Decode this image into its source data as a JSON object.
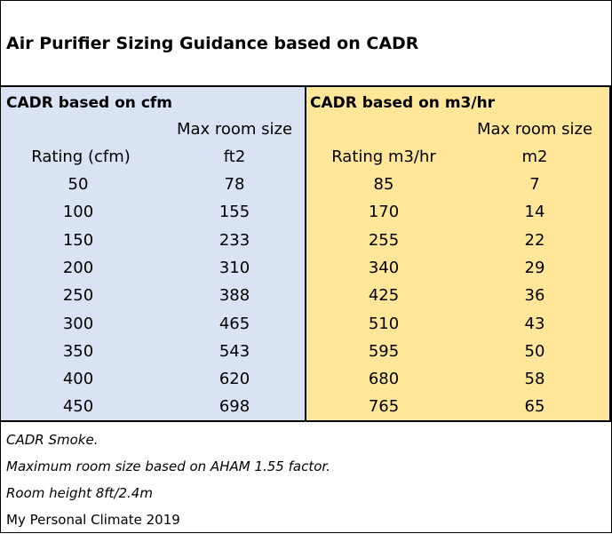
{
  "title": "Air Purifier Sizing Guidance based on  CADR",
  "cfm": {
    "heading": "CADR based on cfm",
    "col1_header": "Rating (cfm)",
    "col2_header_line1": "Max room size",
    "col2_header_line2": "ft2"
  },
  "m3hr": {
    "heading": "CADR based on m3/hr",
    "col1_header": "Rating m3/hr",
    "col2_header_line1": "Max room size",
    "col2_header_line2": "m2"
  },
  "rows": [
    {
      "cfm": "50",
      "ft2": "78",
      "m3hr": "85",
      "m2": "7"
    },
    {
      "cfm": "100",
      "ft2": "155",
      "m3hr": "170",
      "m2": "14"
    },
    {
      "cfm": "150",
      "ft2": "233",
      "m3hr": "255",
      "m2": "22"
    },
    {
      "cfm": "200",
      "ft2": "310",
      "m3hr": "340",
      "m2": "29"
    },
    {
      "cfm": "250",
      "ft2": "388",
      "m3hr": "425",
      "m2": "36"
    },
    {
      "cfm": "300",
      "ft2": "465",
      "m3hr": "510",
      "m2": "43"
    },
    {
      "cfm": "350",
      "ft2": "543",
      "m3hr": "595",
      "m2": "50"
    },
    {
      "cfm": "400",
      "ft2": "620",
      "m3hr": "680",
      "m2": "58"
    },
    {
      "cfm": "450",
      "ft2": "698",
      "m3hr": "765",
      "m2": "65"
    }
  ],
  "notes": [
    "CADR Smoke.",
    "Maximum room size based on AHAM 1.55 factor.",
    "Room height 8ft/2.4m",
    "My Personal Climate 2019"
  ],
  "colors": {
    "cfm_panel": "#dae3f3",
    "m3hr_panel": "#ffe699",
    "border": "#000000"
  }
}
